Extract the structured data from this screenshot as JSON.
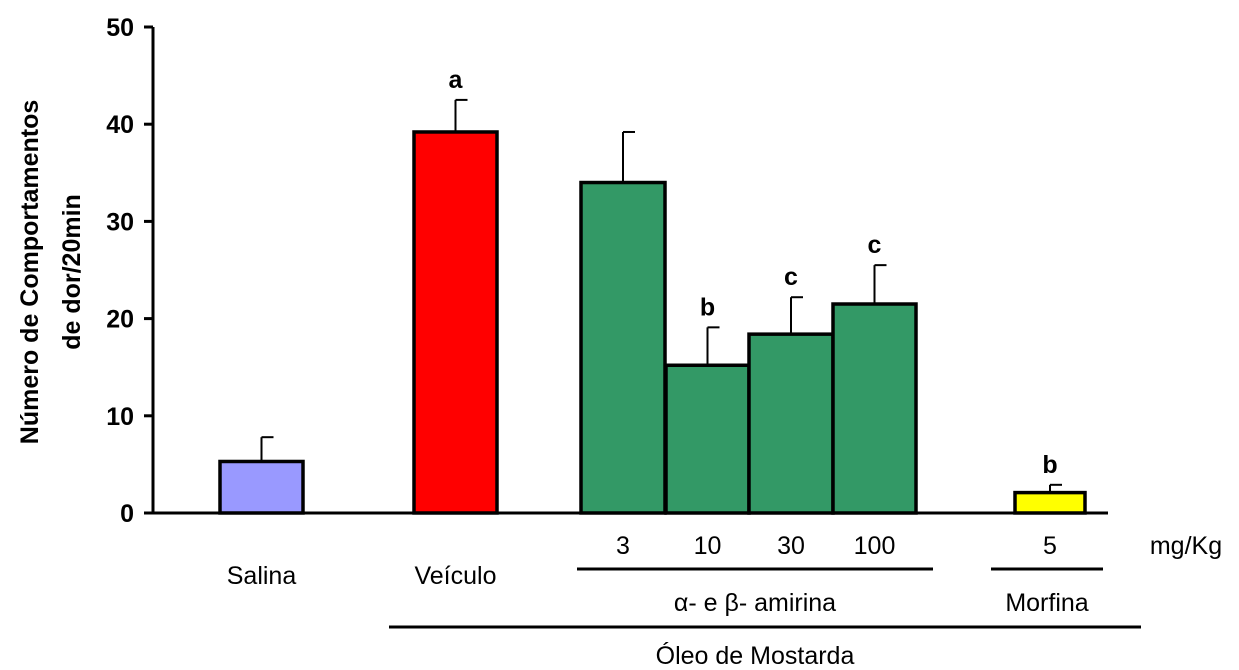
{
  "chart_data": {
    "type": "bar",
    "title": "",
    "ylabel_lines": [
      "Número de Comportamentos",
      "de dor/20min"
    ],
    "xlabel": "",
    "ylim": [
      0,
      50
    ],
    "yticks": [
      0,
      10,
      20,
      30,
      40,
      50
    ],
    "unit_label": "mg/Kg",
    "bars": [
      {
        "value": 5.3,
        "error": 2.5,
        "color": "#9999ff",
        "dose": "",
        "category": "Salina",
        "sig": ""
      },
      {
        "value": 39.2,
        "error": 3.3,
        "color": "#ff0000",
        "dose": "",
        "category": "Veículo",
        "sig": "a"
      },
      {
        "value": 34.0,
        "error": 5.2,
        "color": "#339966",
        "dose": "3",
        "category": "",
        "sig": ""
      },
      {
        "value": 15.2,
        "error": 3.9,
        "color": "#339966",
        "dose": "10",
        "category": "",
        "sig": "b"
      },
      {
        "value": 18.4,
        "error": 3.8,
        "color": "#339966",
        "dose": "30",
        "category": "",
        "sig": "c"
      },
      {
        "value": 21.5,
        "error": 4.0,
        "color": "#339966",
        "dose": "100",
        "category": "",
        "sig": "c"
      },
      {
        "value": 2.1,
        "error": 0.8,
        "color": "#ffff00",
        "dose": "5",
        "category": "",
        "sig": "b"
      }
    ],
    "groups": [
      {
        "label": "α- e β- amirina"
      },
      {
        "label": "Morfina"
      },
      {
        "label": "Óleo de Mostarda"
      }
    ]
  }
}
